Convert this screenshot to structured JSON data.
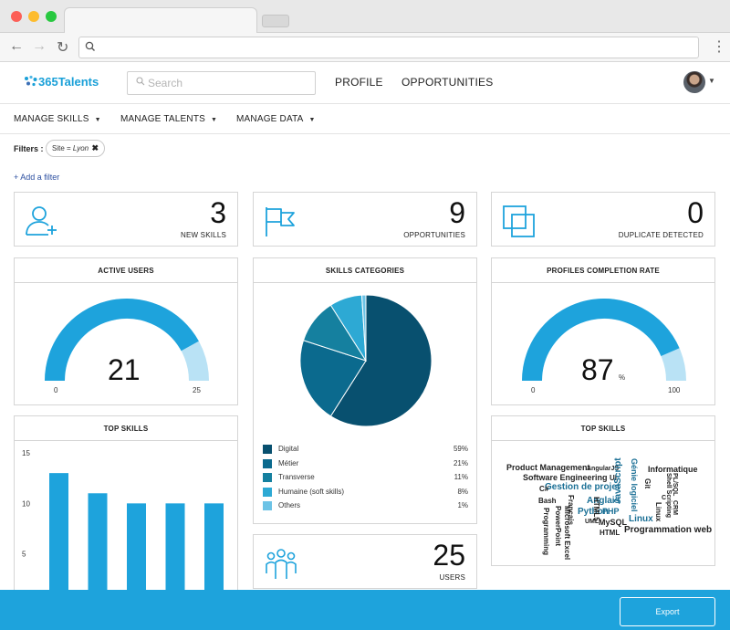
{
  "header": {
    "logo_text": "365Talents",
    "search_placeholder": "Search",
    "nav": [
      "PROFILE",
      "OPPORTUNITIES"
    ]
  },
  "subnav": [
    "MANAGE SKILLS",
    "MANAGE TALENTS",
    "MANAGE DATA"
  ],
  "filters": {
    "label": "Filters :",
    "chip_key": "Site = ",
    "chip_value": "Lyon",
    "add_link": "+ Add a filter"
  },
  "stats": [
    {
      "value": "3",
      "label": "NEW SKILLS"
    },
    {
      "value": "9",
      "label": "OPPORTUNITIES"
    },
    {
      "value": "0",
      "label": "DUPLICATE DETECTED"
    },
    {
      "value": "25",
      "label": "USERS"
    }
  ],
  "active_users": {
    "title": "ACTIVE USERS",
    "value": "21",
    "min": "0",
    "max": "25",
    "fraction": 0.84
  },
  "completion": {
    "title": "PROFILES COMPLETION RATE",
    "value": "87",
    "unit": "%",
    "min": "0",
    "max": "100",
    "fraction": 0.87
  },
  "categories": {
    "title": "SKILLS CATEGORIES",
    "items": [
      {
        "name": "Digital",
        "pct": "59%",
        "value": 59,
        "color": "#08506f"
      },
      {
        "name": "Métier",
        "pct": "21%",
        "value": 21,
        "color": "#0b6a8e"
      },
      {
        "name": "Transverse",
        "pct": "11%",
        "value": 11,
        "color": "#15809f"
      },
      {
        "name": "Humaine (soft skills)",
        "pct": "8%",
        "value": 8,
        "color": "#2da9d4"
      },
      {
        "name": "Others",
        "pct": "1%",
        "value": 1,
        "color": "#6cc3e6"
      }
    ]
  },
  "top_skills_title": "TOP SKILLS",
  "top_skills_chart": {
    "y_ticks": [
      "15",
      "10",
      "5"
    ],
    "ylim": [
      0,
      15
    ]
  },
  "chart_data": [
    {
      "type": "bar",
      "categories": [
        "",
        "",
        "",
        "",
        ""
      ],
      "values": [
        13,
        11,
        10,
        10,
        10
      ],
      "ylim": [
        0,
        15
      ],
      "yticks": [
        5,
        10,
        15
      ]
    },
    {
      "type": "pie",
      "title": "SKILLS CATEGORIES",
      "labels": [
        "Digital",
        "Métier",
        "Transverse",
        "Humaine (soft skills)",
        "Others"
      ],
      "values": [
        59,
        21,
        11,
        8,
        1
      ]
    }
  ],
  "word_cloud": {
    "title": "TOP SKILLS",
    "words": [
      "Product Management",
      "AngularJS",
      "Software Engineering",
      "UI",
      "Gestion de projet",
      "C#",
      "Bash",
      "Anglais",
      "Python",
      "PHP",
      "Linux",
      "Programmation web",
      "JavaScript",
      "Génie logiciel",
      "Informatique",
      "Git",
      "Shell Scripting",
      "PL/SQL",
      "CRM",
      "UML",
      "HTML5",
      "MySQL",
      "HTML",
      "Français",
      "PowerPoint",
      "Microsoft Excel",
      "Programming",
      "Linux",
      "C"
    ]
  },
  "footer": {
    "export_label": "Export"
  },
  "colors": {
    "accent": "#1ea3dc",
    "gauge_light": "#b9e2f5",
    "bar": "#1ea3dc"
  }
}
